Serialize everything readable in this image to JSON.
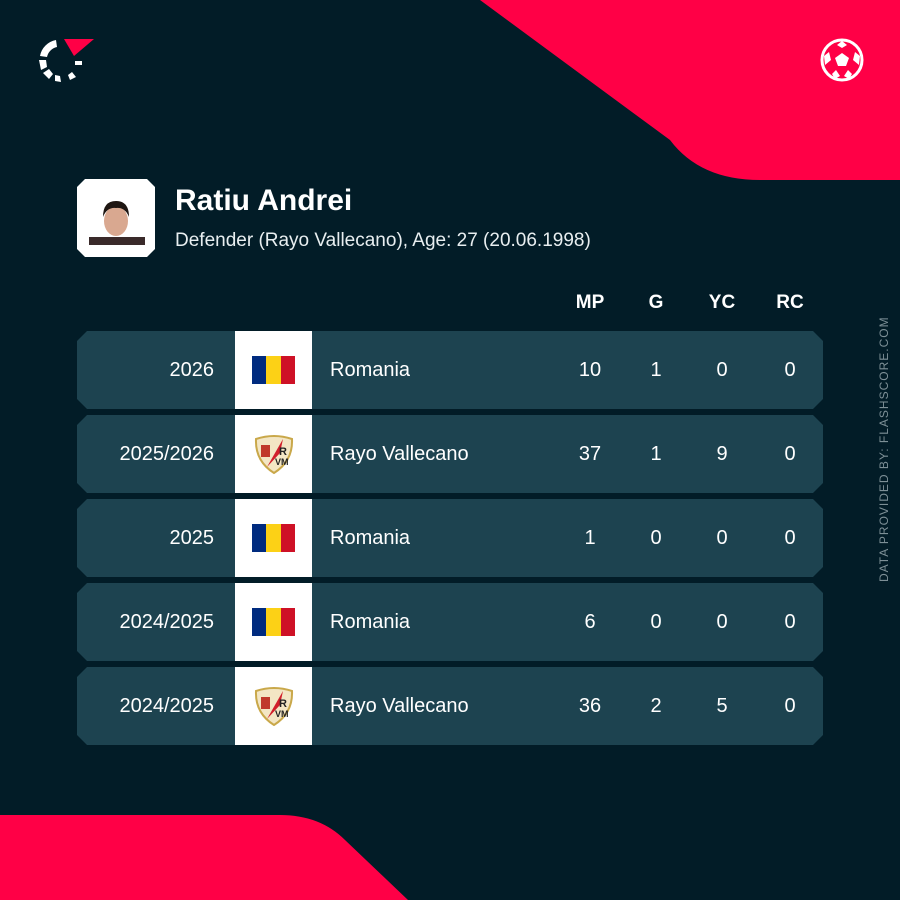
{
  "colors": {
    "background": "#021c27",
    "accent": "#ff0046",
    "row": "#1d4350"
  },
  "brand": {
    "logo_icon": "flashscore-logo-icon",
    "sport_icon": "football-icon"
  },
  "player": {
    "name": "Ratiu Andrei",
    "details": "Defender (Rayo Vallecano), Age: 27 (20.06.1998)"
  },
  "columns": [
    "MP",
    "G",
    "YC",
    "RC"
  ],
  "rows": [
    {
      "season": "2026",
      "team": "Romania",
      "badge": "romania-flag",
      "mp": "10",
      "g": "1",
      "yc": "0",
      "rc": "0"
    },
    {
      "season": "2025/2026",
      "team": "Rayo Vallecano",
      "badge": "rayo-vallecano-crest",
      "mp": "37",
      "g": "1",
      "yc": "9",
      "rc": "0"
    },
    {
      "season": "2025",
      "team": "Romania",
      "badge": "romania-flag",
      "mp": "1",
      "g": "0",
      "yc": "0",
      "rc": "0"
    },
    {
      "season": "2024/2025",
      "team": "Romania",
      "badge": "romania-flag",
      "mp": "6",
      "g": "0",
      "yc": "0",
      "rc": "0"
    },
    {
      "season": "2024/2025",
      "team": "Rayo Vallecano",
      "badge": "rayo-vallecano-crest",
      "mp": "36",
      "g": "2",
      "yc": "5",
      "rc": "0"
    }
  ],
  "credit": "DATA PROVIDED BY: FLASHSCORE.COM"
}
